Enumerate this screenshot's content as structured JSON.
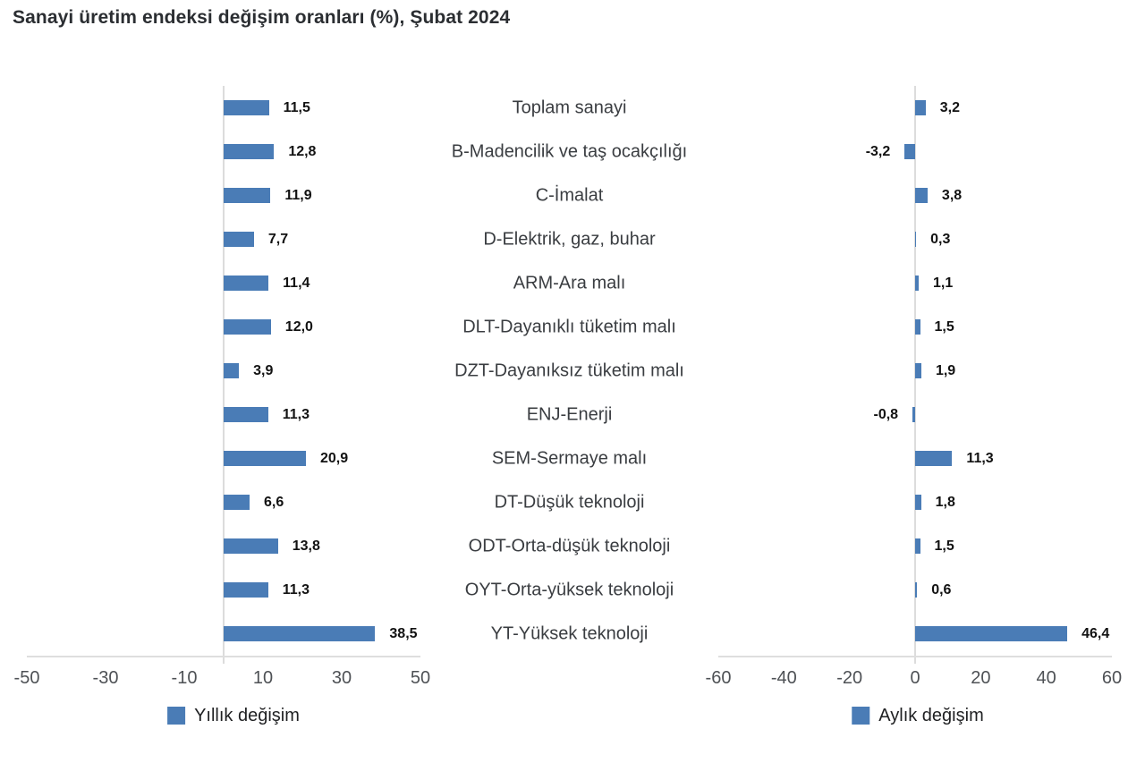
{
  "title": "Sanayi üretim endeksi değişim oranları (%), Şubat 2024",
  "colors": {
    "bar": "#4a7cb6",
    "axis_line": "#dedede",
    "zero_line": "#dcdcdc"
  },
  "chart_data": {
    "type": "bar",
    "orientation": "horizontal",
    "title": "Sanayi üretim endeksi değişim oranları (%), Şubat 2024",
    "grid": false,
    "legend_position": "bottom",
    "categories": [
      "Toplam sanayi",
      "B-Madencilik ve taş ocakçılığı",
      "C-İmalat",
      "D-Elektrik, gaz, buhar",
      "ARM-Ara malı",
      "DLT-Dayanıklı tüketim malı",
      "DZT-Dayanıksız tüketim malı",
      "ENJ-Enerji",
      "SEM-Sermaye malı",
      "DT-Düşük teknoloji",
      "ODT-Orta-düşük teknoloji",
      "OYT-Orta-yüksek teknoloji",
      "YT-Yüksek teknoloji"
    ],
    "series": [
      {
        "name": "Yıllık değişim",
        "values": [
          11.5,
          12.8,
          11.9,
          7.7,
          11.4,
          12.0,
          3.9,
          11.3,
          20.9,
          6.6,
          13.8,
          11.3,
          38.5
        ],
        "value_labels": [
          "11,5",
          "12,8",
          "11,9",
          "7,7",
          "11,4",
          "12,0",
          "3,9",
          "11,3",
          "20,9",
          "6,6",
          "13,8",
          "11,3",
          "38,5"
        ],
        "xlim": [
          -50,
          50
        ],
        "xticks": [
          -50,
          -30,
          -10,
          10,
          30,
          50
        ],
        "xtick_labels": [
          "-50",
          "-30",
          "-10",
          "10",
          "30",
          "50"
        ]
      },
      {
        "name": "Aylık değişim",
        "values": [
          3.2,
          -3.2,
          3.8,
          0.3,
          1.1,
          1.5,
          1.9,
          -0.8,
          11.3,
          1.8,
          1.5,
          0.6,
          46.4
        ],
        "value_labels": [
          "3,2",
          "-3,2",
          "3,8",
          "0,3",
          "1,1",
          "1,5",
          "1,9",
          "-0,8",
          "11,3",
          "1,8",
          "1,5",
          "0,6",
          "46,4"
        ],
        "xlim": [
          -60,
          60
        ],
        "xticks": [
          -60,
          -40,
          -20,
          0,
          20,
          40,
          60
        ],
        "xtick_labels": [
          "-60",
          "-40",
          "-20",
          "0",
          "20",
          "40",
          "60"
        ]
      }
    ]
  }
}
